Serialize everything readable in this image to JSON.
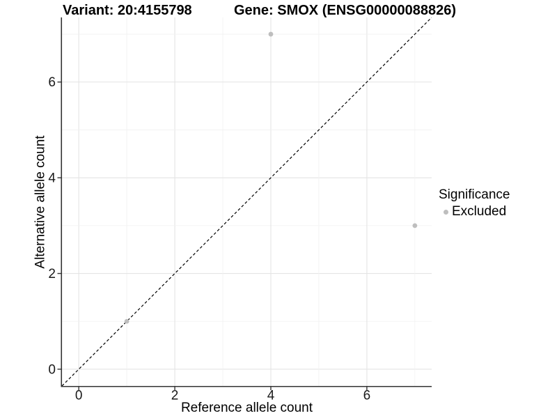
{
  "chart_data": {
    "type": "scatter",
    "title_left": "Variant: 20:4155798",
    "title_right": "Gene: SMOX (ENSG00000088826)",
    "xlabel": "Reference allele count",
    "ylabel": "Alternative allele count",
    "xlim": [
      -0.35,
      7.35
    ],
    "ylim": [
      -0.35,
      7.35
    ],
    "xticks": [
      0,
      2,
      4,
      6
    ],
    "yticks": [
      0,
      2,
      4,
      6
    ],
    "grid_values": [
      0,
      1,
      2,
      3,
      4,
      5,
      6,
      7
    ],
    "grid_on": true,
    "abline": {
      "slope": 1,
      "intercept": 0,
      "style": "dashed",
      "color": "#000000"
    },
    "series": [
      {
        "name": "Excluded",
        "color": "#bebebe",
        "points": [
          [
            1,
            1
          ],
          [
            4,
            7
          ],
          [
            7,
            3
          ]
        ]
      }
    ],
    "legend": {
      "title": "Significance",
      "position": "right",
      "items": [
        {
          "label": "Excluded",
          "color": "#bebebe"
        }
      ]
    },
    "colors": {
      "grid_major": "#e4e4e4",
      "grid_minor": "#f1f1f1",
      "axis_line": "#333333",
      "tick_label": "#1a1a1a",
      "panel_background": "#ffffff"
    }
  }
}
